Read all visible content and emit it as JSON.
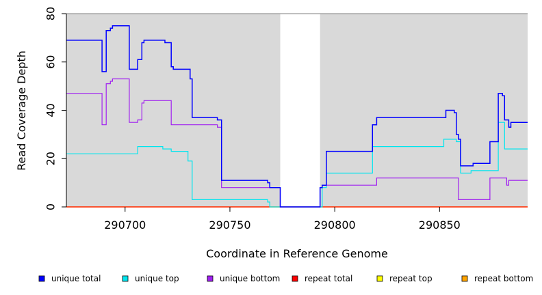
{
  "chart_data": {
    "type": "line",
    "title": "",
    "xlabel": "Coordinate in Reference Genome",
    "ylabel": "Read Coverage Depth",
    "xlim": [
      290672,
      290892
    ],
    "ylim": [
      0,
      80
    ],
    "x_ticks": [
      290700,
      290750,
      290800,
      290850
    ],
    "y_ticks": [
      0,
      20,
      40,
      60,
      80
    ],
    "grid": false,
    "background": "#d9d9d9",
    "gap_regions": [
      [
        290774,
        290793
      ]
    ],
    "legend_position": "bottom",
    "legend_entries": [
      {
        "label": "unique total",
        "color": "#0000ff"
      },
      {
        "label": "unique top",
        "color": "#00e5ee"
      },
      {
        "label": "unique bottom",
        "color": "#a020f0"
      },
      {
        "label": "repeat total",
        "color": "#ff0000"
      },
      {
        "label": "repeat top",
        "color": "#ffff00"
      },
      {
        "label": "repeat bottom",
        "color": "#ffa500"
      }
    ],
    "series": [
      {
        "name": "unique total",
        "color": "#0000ff",
        "style": "step",
        "points": [
          [
            290672,
            69
          ],
          [
            290689,
            56
          ],
          [
            290691,
            73
          ],
          [
            290693,
            74
          ],
          [
            290694,
            75
          ],
          [
            290702,
            57
          ],
          [
            290706,
            61
          ],
          [
            290708,
            68
          ],
          [
            290709,
            69
          ],
          [
            290719,
            68
          ],
          [
            290722,
            58
          ],
          [
            290723,
            57
          ],
          [
            290731,
            53
          ],
          [
            290732,
            37
          ],
          [
            290744,
            36
          ],
          [
            290746,
            11
          ],
          [
            290768,
            10
          ],
          [
            290769,
            8
          ],
          [
            290774,
            0
          ],
          [
            290793,
            8
          ],
          [
            290794,
            9
          ],
          [
            290796,
            23
          ],
          [
            290818,
            34
          ],
          [
            290820,
            37
          ],
          [
            290853,
            40
          ],
          [
            290857,
            39
          ],
          [
            290858,
            30
          ],
          [
            290859,
            28
          ],
          [
            290860,
            17
          ],
          [
            290866,
            18
          ],
          [
            290874,
            27
          ],
          [
            290878,
            47
          ],
          [
            290880,
            46
          ],
          [
            290881,
            36
          ],
          [
            290883,
            33
          ],
          [
            290884,
            35
          ],
          [
            290892,
            35
          ]
        ]
      },
      {
        "name": "unique top",
        "color": "#00e5ee",
        "style": "step",
        "points": [
          [
            290672,
            22
          ],
          [
            290706,
            25
          ],
          [
            290718,
            24
          ],
          [
            290722,
            23
          ],
          [
            290730,
            19
          ],
          [
            290732,
            3
          ],
          [
            290768,
            2
          ],
          [
            290769,
            0
          ],
          [
            290774,
            0
          ],
          [
            290794,
            8
          ],
          [
            290796,
            14
          ],
          [
            290818,
            25
          ],
          [
            290852,
            28
          ],
          [
            290858,
            27
          ],
          [
            290860,
            14
          ],
          [
            290865,
            15
          ],
          [
            290878,
            35
          ],
          [
            290881,
            24
          ],
          [
            290892,
            24
          ]
        ]
      },
      {
        "name": "unique bottom",
        "color": "#a020f0",
        "style": "step",
        "points": [
          [
            290672,
            47
          ],
          [
            290689,
            34
          ],
          [
            290691,
            51
          ],
          [
            290693,
            52
          ],
          [
            290694,
            53
          ],
          [
            290702,
            35
          ],
          [
            290706,
            36
          ],
          [
            290708,
            43
          ],
          [
            290709,
            44
          ],
          [
            290722,
            34
          ],
          [
            290744,
            33
          ],
          [
            290746,
            8
          ],
          [
            290769,
            8
          ],
          [
            290774,
            0
          ],
          [
            290793,
            8
          ],
          [
            290794,
            9
          ],
          [
            290818,
            9
          ],
          [
            290820,
            12
          ],
          [
            290858,
            12
          ],
          [
            290859,
            3
          ],
          [
            290874,
            12
          ],
          [
            290882,
            9
          ],
          [
            290883,
            11
          ],
          [
            290892,
            11
          ]
        ]
      },
      {
        "name": "repeat total",
        "color": "#ff0000",
        "style": "step",
        "points": [
          [
            290672,
            0
          ],
          [
            290892,
            0
          ]
        ]
      },
      {
        "name": "repeat top",
        "color": "#ffff00",
        "style": "step",
        "points": [
          [
            290672,
            0
          ],
          [
            290892,
            0
          ]
        ]
      },
      {
        "name": "repeat bottom",
        "color": "#ffa500",
        "style": "step",
        "points": [
          [
            290672,
            0
          ],
          [
            290892,
            0
          ]
        ]
      }
    ]
  }
}
